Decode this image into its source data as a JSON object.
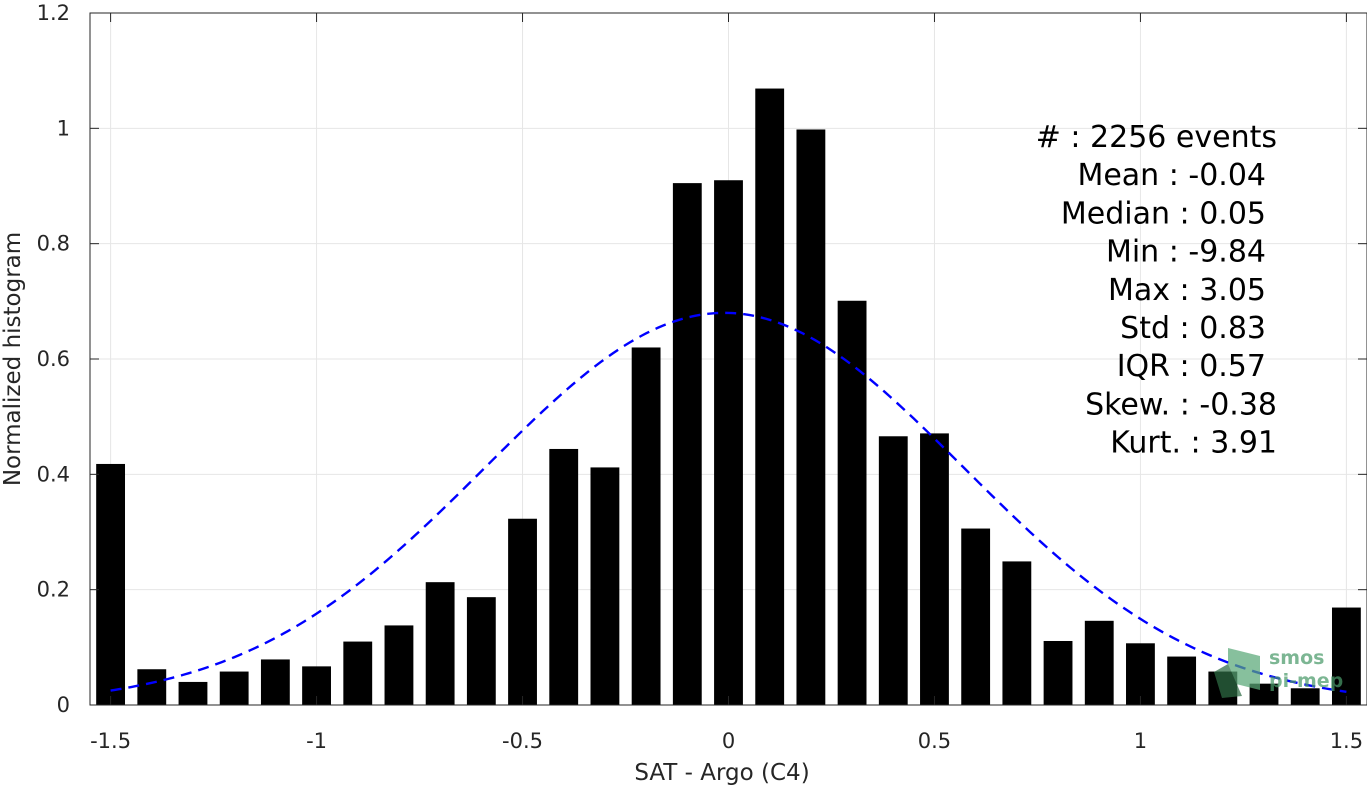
{
  "chart_data": {
    "type": "bar",
    "title": "",
    "xlabel": "SAT - Argo (C4)",
    "ylabel": "Normalized histogram",
    "xlim": [
      -1.55,
      1.55
    ],
    "ylim": [
      0,
      1.2
    ],
    "grid": true,
    "bar_color": "#000000",
    "curve_color": "#0000ff",
    "x_ticks": [
      -1.5,
      -1,
      -0.5,
      0,
      0.5,
      1,
      1.5
    ],
    "x_tick_labels": [
      "-1.5",
      "-1",
      "-0.5",
      "0",
      "0.5",
      "1",
      "1.5"
    ],
    "y_ticks": [
      0,
      0.2,
      0.4,
      0.6,
      0.8,
      1,
      1.2
    ],
    "y_tick_labels": [
      "0",
      "0.2",
      "0.4",
      "0.6",
      "0.8",
      "1",
      "1.2"
    ],
    "bar_width": 0.07,
    "bars": {
      "x": [
        -1.5,
        -1.4,
        -1.3,
        -1.2,
        -1.1,
        -1.0,
        -0.9,
        -0.8,
        -0.7,
        -0.6,
        -0.5,
        -0.4,
        -0.3,
        -0.2,
        -0.1,
        0.0,
        0.1,
        0.2,
        0.3,
        0.4,
        0.5,
        0.6,
        0.7,
        0.8,
        0.9,
        1.0,
        1.1,
        1.2,
        1.3,
        1.4,
        1.5
      ],
      "values": [
        0.418,
        0.062,
        0.04,
        0.058,
        0.079,
        0.067,
        0.11,
        0.138,
        0.213,
        0.187,
        0.323,
        0.444,
        0.412,
        0.62,
        0.905,
        0.91,
        1.069,
        0.998,
        0.701,
        0.466,
        0.471,
        0.306,
        0.249,
        0.111,
        0.146,
        0.107,
        0.084,
        0.058,
        0.037,
        0.029,
        0.169
      ]
    },
    "fit_curve": {
      "style": "dashed",
      "mean": -0.01,
      "std": 0.58,
      "peak": 0.68,
      "x_range": [
        -1.5,
        1.5
      ]
    },
    "stats": [
      "#  : 2256 events",
      "Mean : -0.04",
      "Median : 0.05",
      "Min : -9.84",
      "Max : 3.05",
      "Std : 0.83",
      "IQR : 0.57",
      "Skew. : -0.38",
      "Kurt. : 3.91"
    ],
    "logo": {
      "line1": "smos",
      "line2": "pi-mep",
      "color": "#4a9a6a"
    }
  }
}
